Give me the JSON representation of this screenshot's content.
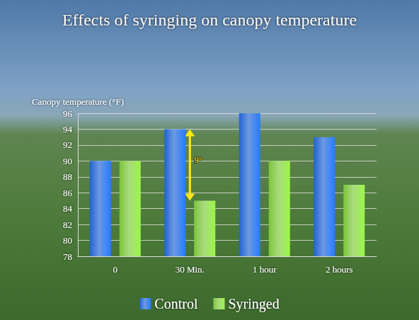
{
  "chart_data": {
    "type": "bar",
    "title": "Effects of syringing on canopy temperature",
    "y_label": "Canopy temperature (°F)",
    "categories": [
      "0",
      "30 Min.",
      "1 hour",
      "2 hours"
    ],
    "series": [
      {
        "name": "Control",
        "color": "#1f63d1",
        "values": [
          90,
          94,
          96,
          93
        ]
      },
      {
        "name": "Syringed",
        "color": "#7cc63a",
        "values": [
          90,
          85,
          90,
          87
        ]
      }
    ],
    "ylim": [
      78,
      96
    ],
    "yticks": [
      78,
      80,
      82,
      84,
      86,
      88,
      90,
      92,
      94,
      96
    ],
    "grid": true,
    "legend": "bottom",
    "annotations": [
      {
        "text": "9°",
        "category": "30 Min.",
        "color": "#ffe81a"
      }
    ]
  }
}
